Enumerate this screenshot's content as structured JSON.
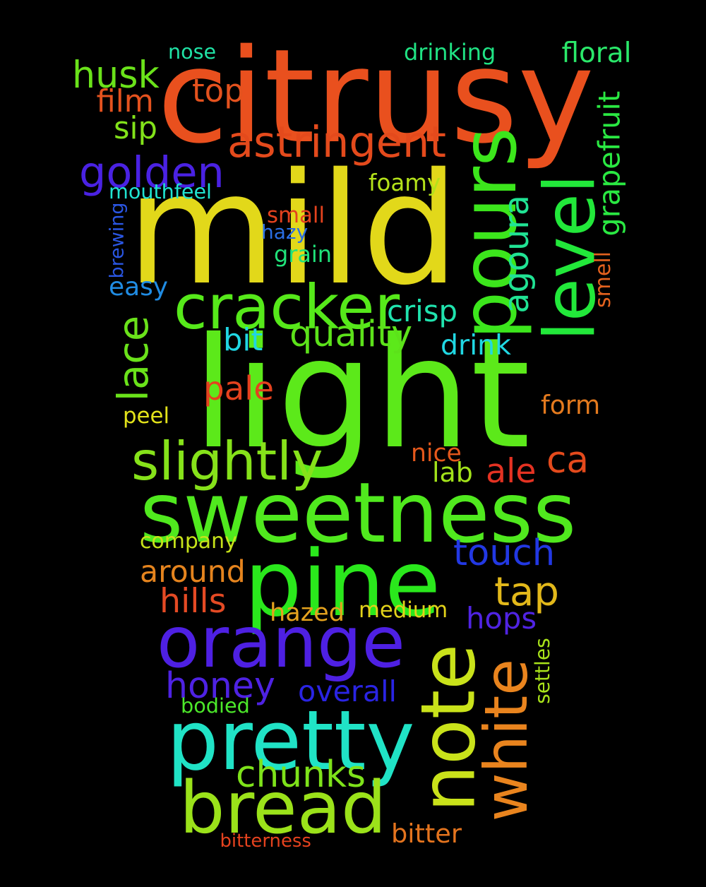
{
  "words": [
    {
      "text": "light",
      "color": "#5ce91a"
    },
    {
      "text": "mild",
      "color": "#e2d81a"
    },
    {
      "text": "citrusy",
      "color": "#e9501e"
    },
    {
      "text": "sweetness",
      "color": "#50e91e"
    },
    {
      "text": "pine",
      "color": "#2ae81c"
    },
    {
      "text": "orange",
      "color": "#4e20e3"
    },
    {
      "text": "pretty",
      "color": "#20e3c6"
    },
    {
      "text": "bread",
      "color": "#9be21a"
    },
    {
      "text": "note",
      "color": "#c9e21a"
    },
    {
      "text": "white",
      "color": "#e9841e"
    },
    {
      "text": "pours",
      "color": "#3ce61c"
    },
    {
      "text": "level",
      "color": "#22e83a"
    },
    {
      "text": "cracker",
      "color": "#56e91a"
    },
    {
      "text": "golden",
      "color": "#4a22e3"
    },
    {
      "text": "astringent",
      "color": "#e44a1c"
    },
    {
      "text": "slightly",
      "color": "#86e21a"
    },
    {
      "text": "honey",
      "color": "#4e22e3"
    },
    {
      "text": "chunks",
      "color": "#7ee21a"
    },
    {
      "text": "touch",
      "color": "#2238e3"
    },
    {
      "text": "husk",
      "color": "#6ae21a"
    },
    {
      "text": "tap",
      "color": "#e2b81a"
    },
    {
      "text": "around",
      "color": "#e5841e"
    },
    {
      "text": "agoura",
      "color": "#20e394"
    },
    {
      "text": "hills",
      "color": "#e44a24"
    },
    {
      "text": "quality",
      "color": "#5ce21a"
    },
    {
      "text": "ale",
      "color": "#e43222"
    },
    {
      "text": "ca",
      "color": "#e44a1c"
    },
    {
      "text": "pale",
      "color": "#e4421e"
    },
    {
      "text": "lace",
      "color": "#6ae21a"
    },
    {
      "text": "hops",
      "color": "#5024e3"
    },
    {
      "text": "top",
      "color": "#e4521e"
    },
    {
      "text": "film",
      "color": "#e4521e"
    },
    {
      "text": "sip",
      "color": "#82e21a"
    },
    {
      "text": "floral",
      "color": "#2ae86a"
    },
    {
      "text": "foamy",
      "color": "#b4e21a"
    },
    {
      "text": "bit",
      "color": "#20d6e3"
    },
    {
      "text": "crisp",
      "color": "#20e3ae"
    },
    {
      "text": "drink",
      "color": "#20d8e3"
    },
    {
      "text": "company",
      "color": "#c6e21a"
    },
    {
      "text": "medium",
      "color": "#e2d21a"
    },
    {
      "text": "hazed",
      "color": "#e4a21e"
    },
    {
      "text": "overall",
      "color": "#2a24e3"
    },
    {
      "text": "grapefruit",
      "color": "#2ae842"
    },
    {
      "text": "easy",
      "color": "#208ce3"
    },
    {
      "text": "nice",
      "color": "#e4581c"
    },
    {
      "text": "form",
      "color": "#e47a1e"
    },
    {
      "text": "bitter",
      "color": "#e4741e"
    },
    {
      "text": "lab",
      "color": "#a2e21a"
    },
    {
      "text": "mouthfeel",
      "color": "#20e3d0"
    },
    {
      "text": "drinking",
      "color": "#20e384"
    },
    {
      "text": "nose",
      "color": "#20e3a6"
    },
    {
      "text": "small",
      "color": "#e4421e"
    },
    {
      "text": "hazy",
      "color": "#2a6ee3"
    },
    {
      "text": "grain",
      "color": "#20e37a"
    },
    {
      "text": "brewing",
      "color": "#2a56e3"
    },
    {
      "text": "peel",
      "color": "#e2e21a"
    },
    {
      "text": "bodied",
      "color": "#4ce82a"
    },
    {
      "text": "bitterness",
      "color": "#e4421e"
    },
    {
      "text": "smell",
      "color": "#e4621e"
    },
    {
      "text": "settles",
      "color": "#a8e21a"
    }
  ]
}
